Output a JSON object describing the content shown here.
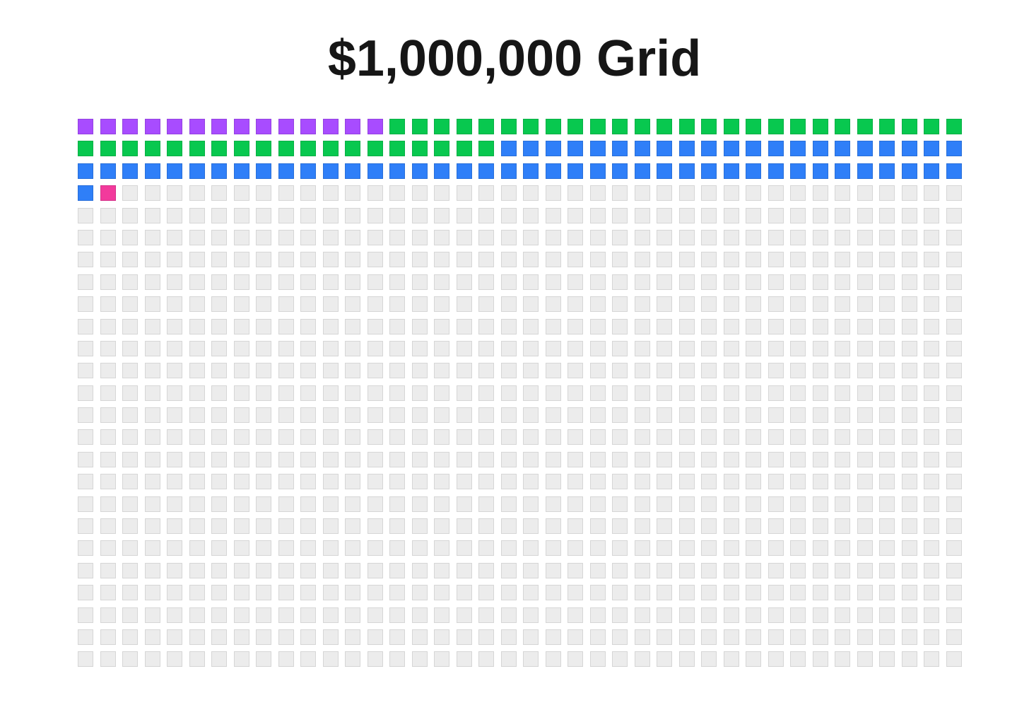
{
  "chart_data": {
    "type": "waffle",
    "title": "$1,000,000 Grid",
    "grid": {
      "columns": 40,
      "rows": 25
    },
    "empty_color": "#ececec",
    "series": [
      {
        "color": "#a84cff",
        "cells": 14
      },
      {
        "color": "#08c84f",
        "cells": 45
      },
      {
        "color": "#2f7ff8",
        "cells": 62
      },
      {
        "color": "#f23a9c",
        "cells": 1
      }
    ],
    "empty_cells": 878
  }
}
